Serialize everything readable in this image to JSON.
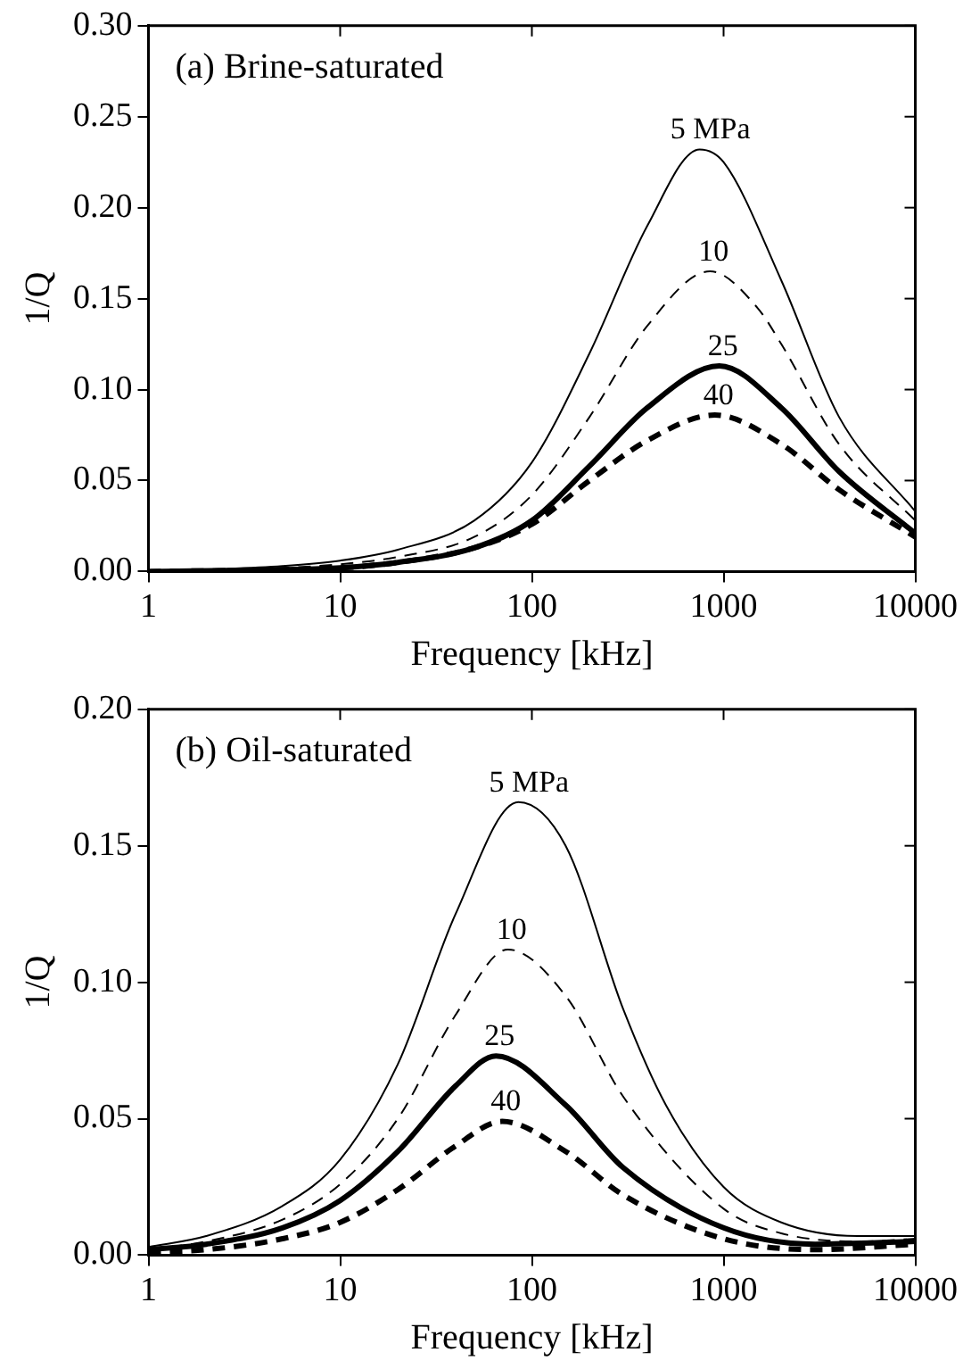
{
  "chart_data": [
    {
      "type": "line",
      "title": "(a) Brine-saturated",
      "xlabel": "Frequency [kHz]",
      "ylabel": "1/Q",
      "log": "x",
      "xlim": [
        1,
        10000
      ],
      "xticks": [
        1,
        10,
        100,
        1000,
        10000
      ],
      "ylim": [
        0,
        0.3
      ],
      "yticks": [
        {
          "value": 0,
          "label": "0.00"
        },
        {
          "value": 0.05,
          "label": "0.05"
        },
        {
          "value": 0.1,
          "label": "0.10"
        },
        {
          "value": 0.15,
          "label": "0.15"
        },
        {
          "value": 0.2,
          "label": "0.20"
        },
        {
          "value": 0.25,
          "label": "0.25"
        },
        {
          "value": 0.3,
          "label": "0.30"
        }
      ],
      "grid": false,
      "legend": false,
      "marker": "none",
      "series": [
        {
          "name": "5 MPa",
          "color": "#000000",
          "line_style": "solid",
          "x": [
            1,
            2,
            5,
            10,
            20,
            50,
            100,
            200,
            400,
            750,
            1000,
            2000,
            4000,
            10000
          ],
          "values": [
            0,
            0.001,
            0.003,
            0.006,
            0.012,
            0.028,
            0.06,
            0.12,
            0.19,
            0.232,
            0.225,
            0.16,
            0.085,
            0.033
          ]
        },
        {
          "name": "10",
          "color": "#000000",
          "line_style": "dashed",
          "x": [
            1,
            2,
            5,
            10,
            20,
            50,
            100,
            200,
            400,
            850,
            1500,
            2000,
            4000,
            10000
          ],
          "values": [
            0,
            0.001,
            0.002,
            0.004,
            0.008,
            0.019,
            0.042,
            0.085,
            0.135,
            0.165,
            0.145,
            0.125,
            0.07,
            0.028
          ]
        },
        {
          "name": "25",
          "color": "#000000",
          "line_style": "solid",
          "x": [
            1,
            5,
            10,
            20,
            50,
            100,
            200,
            400,
            950,
            2000,
            4000,
            10000
          ],
          "values": [
            0,
            0.001,
            0.002,
            0.005,
            0.013,
            0.028,
            0.058,
            0.09,
            0.113,
            0.09,
            0.055,
            0.021
          ]
        },
        {
          "name": "40",
          "color": "#000000",
          "line_style": "dashed",
          "x": [
            1,
            10,
            20,
            50,
            100,
            200,
            400,
            900,
            2000,
            4000,
            10000
          ],
          "values": [
            0,
            0.002,
            0.005,
            0.013,
            0.026,
            0.05,
            0.072,
            0.086,
            0.07,
            0.045,
            0.019
          ]
        }
      ]
    },
    {
      "type": "line",
      "title": "(b) Oil-saturated",
      "xlabel": "Frequency [kHz]",
      "ylabel": "1/Q",
      "log": "x",
      "xlim": [
        1,
        10000
      ],
      "xticks": [
        1,
        10,
        100,
        1000,
        10000
      ],
      "ylim": [
        0,
        0.2
      ],
      "yticks": [
        {
          "value": 0,
          "label": "0.00"
        },
        {
          "value": 0.05,
          "label": "0.05"
        },
        {
          "value": 0.1,
          "label": "0.10"
        },
        {
          "value": 0.15,
          "label": "0.15"
        },
        {
          "value": 0.2,
          "label": "0.20"
        }
      ],
      "grid": false,
      "legend": false,
      "marker": "none",
      "series": [
        {
          "name": "5 MPa",
          "color": "#000000",
          "line_style": "solid",
          "x": [
            1,
            2,
            5,
            10,
            20,
            40,
            85,
            150,
            300,
            500,
            1000,
            2000,
            5000,
            10000
          ],
          "values": [
            0.003,
            0.007,
            0.018,
            0.035,
            0.07,
            0.125,
            0.166,
            0.15,
            0.09,
            0.055,
            0.025,
            0.012,
            0.007,
            0.007
          ]
        },
        {
          "name": "10",
          "color": "#000000",
          "line_style": "dashed",
          "x": [
            1,
            2,
            5,
            10,
            20,
            40,
            75,
            150,
            300,
            1000,
            2000,
            5000,
            10000
          ],
          "values": [
            0.002,
            0.005,
            0.013,
            0.026,
            0.05,
            0.088,
            0.112,
            0.095,
            0.058,
            0.017,
            0.008,
            0.005,
            0.006
          ]
        },
        {
          "name": "25",
          "color": "#000000",
          "line_style": "solid",
          "x": [
            1,
            2,
            5,
            10,
            20,
            40,
            65,
            150,
            300,
            1000,
            3000,
            10000
          ],
          "values": [
            0.002,
            0.004,
            0.01,
            0.02,
            0.038,
            0.062,
            0.073,
            0.055,
            0.032,
            0.01,
            0.004,
            0.005
          ]
        },
        {
          "name": "40",
          "color": "#000000",
          "line_style": "dashed",
          "x": [
            1,
            2,
            5,
            10,
            20,
            40,
            70,
            150,
            300,
            1000,
            3000,
            10000
          ],
          "values": [
            0.001,
            0.002,
            0.006,
            0.012,
            0.024,
            0.04,
            0.049,
            0.038,
            0.022,
            0.006,
            0.002,
            0.004
          ]
        }
      ]
    }
  ]
}
